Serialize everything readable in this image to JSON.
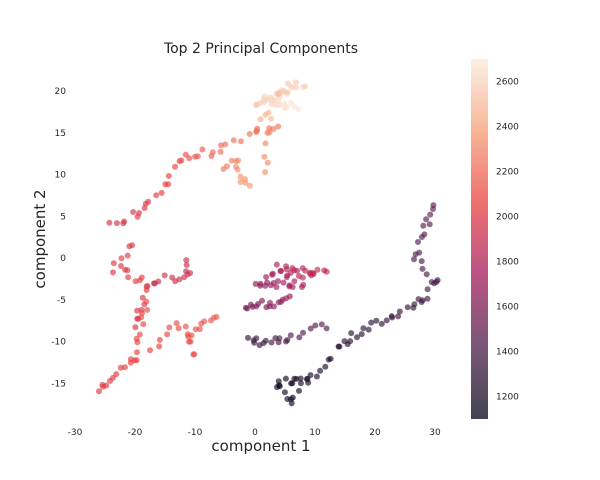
{
  "chart_data": {
    "type": "scatter",
    "title": "Top 2 Principal Components",
    "xlabel": "component 1",
    "ylabel": "component 2",
    "xlim": [
      -30,
      35
    ],
    "ylim": [
      -20,
      23
    ],
    "xticks": [
      -30,
      -20,
      -10,
      0,
      10,
      20,
      30
    ],
    "yticks": [
      -15,
      -10,
      -5,
      0,
      5,
      10,
      15,
      20
    ],
    "grid": false,
    "colorbar": {
      "ticks": [
        1200,
        1400,
        1600,
        1800,
        2000,
        2200,
        2400,
        2600
      ],
      "range": [
        1100,
        2700
      ],
      "colormap": "rocket",
      "colors": [
        "#03051a",
        "#4c1d4b",
        "#a11a5b",
        "#e83f3f",
        "#f69c73",
        "#faebdd"
      ]
    },
    "point_alpha": 0.65,
    "point_radius": 3,
    "segments": [
      {
        "from": [
          6,
          -17
        ],
        "to": [
          15,
          -10
        ],
        "c": [
          1150,
          1250
        ],
        "n": 14
      },
      {
        "from": [
          15,
          -10
        ],
        "to": [
          28,
          -5
        ],
        "c": [
          1250,
          1350
        ],
        "n": 20
      },
      {
        "from": [
          28,
          -5
        ],
        "to": [
          30,
          -3
        ],
        "c": [
          1350,
          1380
        ],
        "n": 5
      },
      {
        "from": [
          30,
          -3
        ],
        "to": [
          27,
          0
        ],
        "c": [
          1380,
          1420
        ],
        "n": 6
      },
      {
        "from": [
          27,
          0
        ],
        "to": [
          29,
          5
        ],
        "c": [
          1420,
          1460
        ],
        "n": 8
      },
      {
        "from": [
          29,
          5
        ],
        "to": [
          30,
          6
        ],
        "c": [
          1460,
          1480
        ],
        "n": 3
      },
      {
        "from": [
          4,
          -15
        ],
        "to": [
          9,
          -14
        ],
        "c": [
          1150,
          1200
        ],
        "n": 10
      },
      {
        "from": [
          6,
          -17
        ],
        "to": [
          4,
          -15
        ],
        "c": [
          1150,
          1160
        ],
        "n": 5
      },
      {
        "from": [
          -1,
          -10
        ],
        "to": [
          5,
          -10
        ],
        "c": [
          1300,
          1400
        ],
        "n": 12
      },
      {
        "from": [
          5,
          -10
        ],
        "to": [
          12,
          -8
        ],
        "c": [
          1400,
          1450
        ],
        "n": 8
      },
      {
        "from": [
          -2,
          -6
        ],
        "to": [
          6,
          -5
        ],
        "c": [
          1550,
          1700
        ],
        "n": 16
      },
      {
        "from": [
          0,
          -3
        ],
        "to": [
          8,
          -3
        ],
        "c": [
          1650,
          1800
        ],
        "n": 16
      },
      {
        "from": [
          2,
          -2
        ],
        "to": [
          10,
          -2
        ],
        "c": [
          1750,
          1850
        ],
        "n": 14
      },
      {
        "from": [
          4,
          -1
        ],
        "to": [
          12,
          -2
        ],
        "c": [
          1800,
          1880
        ],
        "n": 12
      },
      {
        "from": [
          -18,
          -3
        ],
        "to": [
          -11,
          -2
        ],
        "c": [
          1900,
          1950
        ],
        "n": 10
      },
      {
        "from": [
          -20,
          -8
        ],
        "to": [
          -18,
          -4
        ],
        "c": [
          1950,
          2000
        ],
        "n": 8
      },
      {
        "from": [
          -24,
          -1
        ],
        "to": [
          -18,
          -3
        ],
        "c": [
          2000,
          2050
        ],
        "n": 10
      },
      {
        "from": [
          -11,
          -2
        ],
        "to": [
          -11,
          0
        ],
        "c": [
          1900,
          1920
        ],
        "n": 4
      },
      {
        "from": [
          -26,
          -16
        ],
        "to": [
          -20,
          -12
        ],
        "c": [
          2000,
          2050
        ],
        "n": 12
      },
      {
        "from": [
          -20,
          -12
        ],
        "to": [
          -18,
          -5
        ],
        "c": [
          2050,
          2100
        ],
        "n": 10
      },
      {
        "from": [
          -17,
          -11
        ],
        "to": [
          -13,
          -8
        ],
        "c": [
          2050,
          2100
        ],
        "n": 6
      },
      {
        "from": [
          -13,
          -8
        ],
        "to": [
          -11,
          -9
        ],
        "c": [
          2100,
          2120
        ],
        "n": 3
      },
      {
        "from": [
          -11,
          -9
        ],
        "to": [
          -6,
          -7
        ],
        "c": [
          2100,
          2150
        ],
        "n": 8
      },
      {
        "from": [
          -11,
          -9
        ],
        "to": [
          -10,
          -12
        ],
        "c": [
          2080,
          2100
        ],
        "n": 5
      },
      {
        "from": [
          -24,
          4
        ],
        "to": [
          -18,
          6
        ],
        "c": [
          1950,
          2000
        ],
        "n": 8
      },
      {
        "from": [
          -20,
          2
        ],
        "to": [
          -22,
          0
        ],
        "c": [
          2000,
          2050
        ],
        "n": 4
      },
      {
        "from": [
          -18,
          6
        ],
        "to": [
          -12,
          12
        ],
        "c": [
          2000,
          2100
        ],
        "n": 10
      },
      {
        "from": [
          -12,
          12
        ],
        "to": [
          -6,
          13
        ],
        "c": [
          2100,
          2200
        ],
        "n": 8
      },
      {
        "from": [
          -6,
          13
        ],
        "to": [
          0,
          15
        ],
        "c": [
          2200,
          2250
        ],
        "n": 6
      },
      {
        "from": [
          0,
          15
        ],
        "to": [
          4,
          16
        ],
        "c": [
          2200,
          2250
        ],
        "n": 6
      },
      {
        "from": [
          -5,
          11
        ],
        "to": [
          -3,
          12
        ],
        "c": [
          2250,
          2300
        ],
        "n": 4
      },
      {
        "from": [
          -3,
          12
        ],
        "to": [
          -2,
          9
        ],
        "c": [
          2300,
          2350
        ],
        "n": 5
      },
      {
        "from": [
          -2,
          9
        ],
        "to": [
          -1,
          9
        ],
        "c": [
          2350,
          2360
        ],
        "n": 3
      },
      {
        "from": [
          2,
          15
        ],
        "to": [
          2,
          10
        ],
        "c": [
          2300,
          2330
        ],
        "n": 5
      },
      {
        "from": [
          0,
          18
        ],
        "to": [
          5,
          20
        ],
        "c": [
          2550,
          2650
        ],
        "n": 14
      },
      {
        "from": [
          2,
          19
        ],
        "to": [
          7,
          18
        ],
        "c": [
          2600,
          2680
        ],
        "n": 12
      },
      {
        "from": [
          4,
          20
        ],
        "to": [
          8,
          21
        ],
        "c": [
          2500,
          2600
        ],
        "n": 10
      },
      {
        "from": [
          1,
          17
        ],
        "to": [
          3,
          17
        ],
        "c": [
          2450,
          2500
        ],
        "n": 4
      }
    ]
  }
}
